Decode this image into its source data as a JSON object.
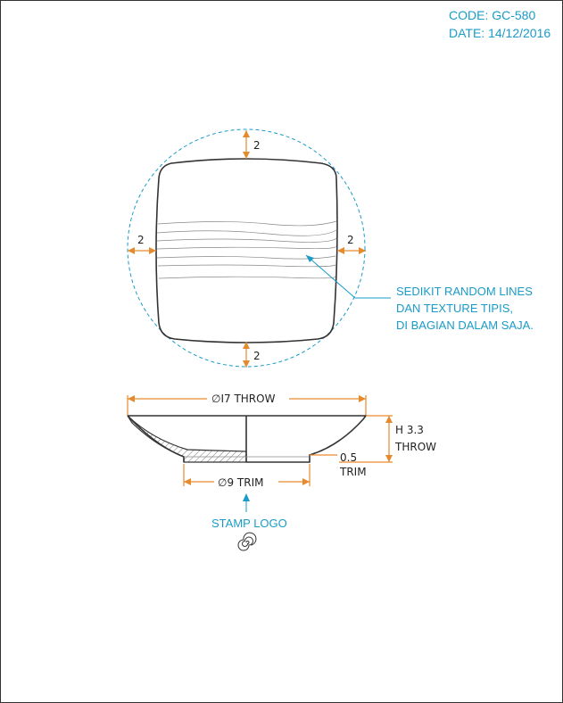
{
  "header": {
    "code": "CODE: GC-580",
    "date": "DATE: 14/12/2016"
  },
  "top_view": {
    "margin_top": "2",
    "margin_left": "2",
    "margin_right": "2",
    "margin_bottom": "2",
    "note_lines": [
      "SEDIKIT RANDOM LINES",
      "DAN TEXTURE TIPIS,",
      "DI BAGIAN DALAM SAJA."
    ]
  },
  "side_view": {
    "overall_diameter": "∅I7 THROW",
    "foot_diameter": "∅9 TRIM",
    "height_value": "H 3.3",
    "height_label": "THROW",
    "foot_height_value": "0.5",
    "foot_height_label": "TRIM"
  },
  "stamp": {
    "label": "STAMP LOGO",
    "icon": "spiral-stamp-icon"
  },
  "colors": {
    "dimension": "#e68a2e",
    "annotation": "#1a9bc8",
    "outline": "#333333"
  }
}
